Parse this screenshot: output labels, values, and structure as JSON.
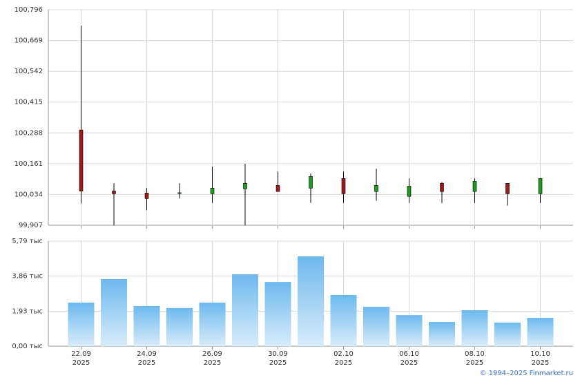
{
  "chart_data": [
    {
      "type": "candlestick",
      "open": [
        100.3,
        100.048,
        100.04,
        100.04,
        100.037,
        100.057,
        100.071,
        100.06,
        100.1,
        100.046,
        100.026,
        100.08,
        100.046,
        100.08,
        100.037
      ],
      "high": [
        100.73,
        100.08,
        100.06,
        100.08,
        100.148,
        100.16,
        100.128,
        100.12,
        100.128,
        100.14,
        100.1,
        100.085,
        100.1,
        100.08,
        100.1
      ],
      "low": [
        99.997,
        99.907,
        99.969,
        100.017,
        99.999,
        99.907,
        100.046,
        99.999,
        99.999,
        100.008,
        99.999,
        99.999,
        99.999,
        99.988,
        99.999
      ],
      "close": [
        100.048,
        100.037,
        100.017,
        100.041,
        100.06,
        100.08,
        100.046,
        100.108,
        100.037,
        100.071,
        100.068,
        100.046,
        100.088,
        100.037,
        100.1
      ],
      "up_color": "#1f9b1f",
      "down_color": "#a31a1a",
      "ylim": [
        99.907,
        100.796
      ],
      "yticks": [
        {
          "value": 99.907,
          "label": "99,907"
        },
        {
          "value": 100.034,
          "label": "100,034"
        },
        {
          "value": 100.161,
          "label": "100,161"
        },
        {
          "value": 100.288,
          "label": "100,288"
        },
        {
          "value": 100.415,
          "label": "100,415"
        },
        {
          "value": 100.542,
          "label": "100,542"
        },
        {
          "value": 100.669,
          "label": "100,669"
        },
        {
          "value": 100.796,
          "label": "100,796"
        }
      ],
      "grid": true
    },
    {
      "type": "bar",
      "categories": [
        "22.09 2025",
        null,
        "24.09 2025",
        null,
        "26.09 2025",
        null,
        "30.09 2025",
        null,
        "02.10 2025",
        null,
        "06.10 2025",
        null,
        "08.10 2025",
        null,
        "10.10 2025"
      ],
      "values": [
        2.4,
        3.7,
        2.21,
        2.1,
        2.4,
        3.96,
        3.54,
        4.95,
        2.82,
        2.17,
        1.71,
        1.33,
        1.98,
        1.3,
        1.56
      ],
      "ylim": [
        0,
        5.79
      ],
      "yticks": [
        {
          "value": 0,
          "label": "0,00 тыс"
        },
        {
          "value": 1.93,
          "label": "1,93 тыс"
        },
        {
          "value": 3.86,
          "label": "3,86 тыс"
        },
        {
          "value": 5.79,
          "label": "5,79 тыс"
        }
      ],
      "grid": true
    }
  ],
  "footer": "© 1994–2025 Finmarket.ru"
}
